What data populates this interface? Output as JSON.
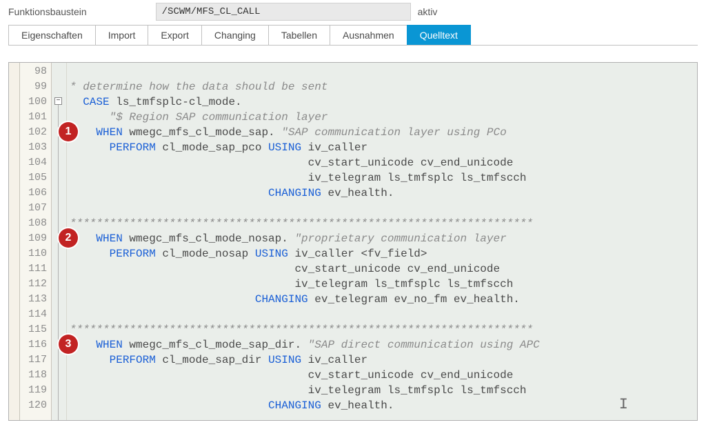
{
  "colors": {
    "active_tab_bg": "#0a96d4",
    "editor_bg": "#eaeeea",
    "gutter_bg": "#f7f6ef",
    "keyword": "#1a5fd6",
    "identifier": "#4a4a4a",
    "comment": "#8a8a8a",
    "marker": "#c22323"
  },
  "header": {
    "label": "Funktionsbaustein",
    "value": "/SCWM/MFS_CL_CALL",
    "status": "aktiv"
  },
  "tabs": [
    {
      "label": "Eigenschaften",
      "active": false
    },
    {
      "label": "Import",
      "active": false
    },
    {
      "label": "Export",
      "active": false
    },
    {
      "label": "Changing",
      "active": false
    },
    {
      "label": "Tabellen",
      "active": false
    },
    {
      "label": "Ausnahmen",
      "active": false
    },
    {
      "label": "Quelltext",
      "active": true
    }
  ],
  "gutter": {
    "start": 98,
    "end": 120
  },
  "fold": {
    "row": 2,
    "symbol": "−"
  },
  "markers": [
    {
      "n": "1",
      "row": 4
    },
    {
      "n": "2",
      "row": 11
    },
    {
      "n": "3",
      "row": 18
    }
  ],
  "code": [
    {
      "segments": []
    },
    {
      "segments": [
        {
          "t": "* determine how the data should be sent",
          "cls": "c"
        }
      ]
    },
    {
      "segments": [
        {
          "t": "  ",
          "cls": "id"
        },
        {
          "t": "CASE",
          "cls": "kw"
        },
        {
          "t": " ls_tmfsplc-cl_mode.",
          "cls": "id"
        }
      ]
    },
    {
      "segments": [
        {
          "t": "      \"$ Region SAP communication layer",
          "cls": "ci"
        }
      ]
    },
    {
      "segments": [
        {
          "t": "    ",
          "cls": "id"
        },
        {
          "t": "WHEN",
          "cls": "kw"
        },
        {
          "t": " wmegc_mfs_cl_mode_sap. ",
          "cls": "id"
        },
        {
          "t": "\"SAP communication layer using PCo",
          "cls": "ci"
        }
      ]
    },
    {
      "segments": [
        {
          "t": "      ",
          "cls": "id"
        },
        {
          "t": "PERFORM",
          "cls": "kw"
        },
        {
          "t": " cl_mode_sap_pco ",
          "cls": "id"
        },
        {
          "t": "USING",
          "cls": "kw"
        },
        {
          "t": " iv_caller",
          "cls": "id"
        }
      ]
    },
    {
      "segments": [
        {
          "t": "                                    cv_start_unicode cv_end_unicode",
          "cls": "id"
        }
      ]
    },
    {
      "segments": [
        {
          "t": "                                    iv_telegram ls_tmfsplc ls_tmfscch",
          "cls": "id"
        }
      ]
    },
    {
      "segments": [
        {
          "t": "                              ",
          "cls": "id"
        },
        {
          "t": "CHANGING",
          "cls": "kw"
        },
        {
          "t": " ev_health.",
          "cls": "id"
        }
      ]
    },
    {
      "segments": []
    },
    {
      "segments": [
        {
          "t": "**********************************************************************",
          "cls": "c"
        }
      ]
    },
    {
      "segments": [
        {
          "t": "    ",
          "cls": "id"
        },
        {
          "t": "WHEN",
          "cls": "kw"
        },
        {
          "t": " wmegc_mfs_cl_mode_nosap. ",
          "cls": "id"
        },
        {
          "t": "\"proprietary communication layer",
          "cls": "ci"
        }
      ]
    },
    {
      "segments": [
        {
          "t": "      ",
          "cls": "id"
        },
        {
          "t": "PERFORM",
          "cls": "kw"
        },
        {
          "t": " cl_mode_nosap ",
          "cls": "id"
        },
        {
          "t": "USING",
          "cls": "kw"
        },
        {
          "t": " iv_caller <fv_field>",
          "cls": "id"
        }
      ]
    },
    {
      "segments": [
        {
          "t": "                                  cv_start_unicode cv_end_unicode",
          "cls": "id"
        }
      ]
    },
    {
      "segments": [
        {
          "t": "                                  iv_telegram ls_tmfsplc ls_tmfscch",
          "cls": "id"
        }
      ]
    },
    {
      "segments": [
        {
          "t": "                            ",
          "cls": "id"
        },
        {
          "t": "CHANGING",
          "cls": "kw"
        },
        {
          "t": " ev_telegram ev_no_fm ev_health.",
          "cls": "id"
        }
      ]
    },
    {
      "segments": []
    },
    {
      "segments": [
        {
          "t": "**********************************************************************",
          "cls": "c"
        }
      ]
    },
    {
      "segments": [
        {
          "t": "    ",
          "cls": "id"
        },
        {
          "t": "WHEN",
          "cls": "kw"
        },
        {
          "t": " wmegc_mfs_cl_mode_sap_dir. ",
          "cls": "id"
        },
        {
          "t": "\"SAP direct communication using APC",
          "cls": "ci"
        }
      ]
    },
    {
      "segments": [
        {
          "t": "      ",
          "cls": "id"
        },
        {
          "t": "PERFORM",
          "cls": "kw"
        },
        {
          "t": " cl_mode_sap_dir ",
          "cls": "id"
        },
        {
          "t": "USING",
          "cls": "kw"
        },
        {
          "t": " iv_caller",
          "cls": "id"
        }
      ]
    },
    {
      "segments": [
        {
          "t": "                                    cv_start_unicode cv_end_unicode",
          "cls": "id"
        }
      ]
    },
    {
      "segments": [
        {
          "t": "                                    iv_telegram ls_tmfsplc ls_tmfscch",
          "cls": "id"
        }
      ]
    },
    {
      "segments": [
        {
          "t": "                              ",
          "cls": "id"
        },
        {
          "t": "CHANGING",
          "cls": "kw"
        },
        {
          "t": " ev_health.",
          "cls": "id"
        }
      ]
    }
  ]
}
